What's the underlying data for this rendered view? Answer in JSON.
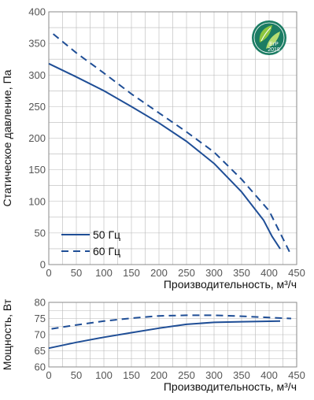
{
  "colors": {
    "line": "#1f4e96",
    "grid": "#b8b8b8",
    "frame": "#8a8a8a",
    "badge": "#1b7c63"
  },
  "badge": {
    "icon": "erp-leaf-badge-icon",
    "line1": "ErP",
    "line2": "2018"
  },
  "chart_data": [
    {
      "type": "line",
      "xlabel": "Производительность, м³/ч",
      "ylabel": "Статическое давление, Па",
      "xlim": [
        0,
        450
      ],
      "ylim": [
        0,
        400
      ],
      "xticks": [
        0,
        50,
        100,
        150,
        200,
        250,
        300,
        350,
        400,
        450
      ],
      "yticks": [
        0,
        50,
        100,
        150,
        200,
        250,
        300,
        350,
        400
      ],
      "grid": true,
      "legend": "bottom-left",
      "series": [
        {
          "name": "50 Гц",
          "style": "solid",
          "x": [
            0,
            50,
            100,
            150,
            200,
            250,
            300,
            350,
            390,
            405,
            420
          ],
          "y": [
            318,
            297,
            275,
            250,
            224,
            195,
            160,
            115,
            70,
            45,
            25
          ]
        },
        {
          "name": "60 Гц",
          "style": "dashed",
          "x": [
            8,
            50,
            100,
            150,
            200,
            250,
            300,
            350,
            400,
            420,
            437
          ],
          "y": [
            365,
            335,
            303,
            270,
            240,
            210,
            178,
            135,
            85,
            50,
            20
          ]
        }
      ]
    },
    {
      "type": "line",
      "xlabel": "Производительность, м³/ч",
      "ylabel": "Мощность, Вт",
      "xlim": [
        0,
        450
      ],
      "ylim": [
        60,
        80
      ],
      "xticks": [
        0,
        50,
        100,
        150,
        200,
        250,
        300,
        350,
        400,
        450
      ],
      "yticks": [
        60,
        65,
        70,
        75,
        80
      ],
      "grid": true,
      "series": [
        {
          "name": "50 Гц",
          "style": "solid",
          "x": [
            0,
            50,
            100,
            150,
            200,
            250,
            300,
            350,
            420
          ],
          "y": [
            65.8,
            67.6,
            69.2,
            70.6,
            72.0,
            73.2,
            73.8,
            74.0,
            74.2
          ]
        },
        {
          "name": "60 Гц",
          "style": "dashed",
          "x": [
            5,
            50,
            100,
            150,
            200,
            250,
            300,
            350,
            400,
            440
          ],
          "y": [
            71.8,
            73.0,
            74.2,
            75.1,
            75.8,
            76.0,
            76.0,
            75.7,
            75.3,
            75.0
          ]
        }
      ]
    }
  ]
}
